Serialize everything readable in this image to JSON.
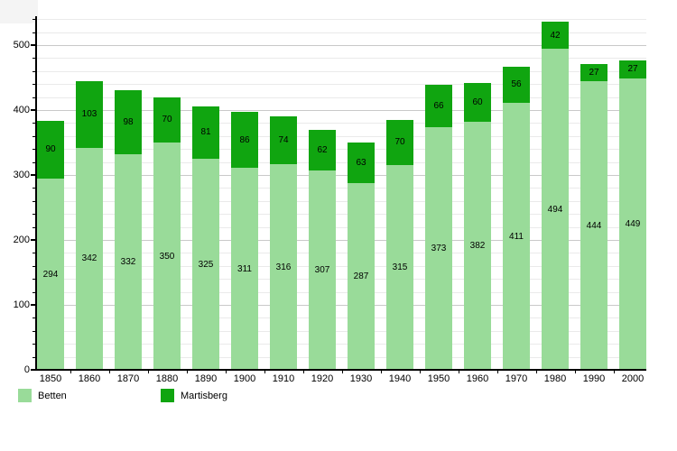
{
  "chart_data": {
    "type": "bar",
    "stacked": true,
    "title": "",
    "xlabel": "",
    "ylabel": "",
    "categories": [
      "1850",
      "1860",
      "1870",
      "1880",
      "1890",
      "1900",
      "1910",
      "1920",
      "1930",
      "1940",
      "1950",
      "1960",
      "1970",
      "1980",
      "1990",
      "2000"
    ],
    "series": [
      {
        "name": "Betten",
        "color": "#99DB99",
        "values": [
          294,
          342,
          332,
          350,
          325,
          311,
          316,
          307,
          287,
          315,
          373,
          382,
          411,
          494,
          444,
          449
        ]
      },
      {
        "name": "Martisberg",
        "color": "#10A510",
        "values": [
          90,
          103,
          98,
          70,
          81,
          86,
          74,
          62,
          63,
          70,
          66,
          60,
          56,
          42,
          27,
          27
        ]
      }
    ],
    "ylim": [
      0,
      544
    ],
    "ytick_labels": [
      "0",
      "100",
      "200",
      "300",
      "400",
      "500"
    ],
    "ytick_values": [
      0,
      100,
      200,
      300,
      400,
      500
    ],
    "minor_grid_step": 20,
    "grid": true,
    "legend_position": "bottom",
    "value_labels_shown": true
  },
  "colors": {
    "background": "#ffffff",
    "axis": "#000000",
    "grid_minor": "#eaeaea",
    "grid_major": "#c9c9c9",
    "label_text": "#000000"
  }
}
